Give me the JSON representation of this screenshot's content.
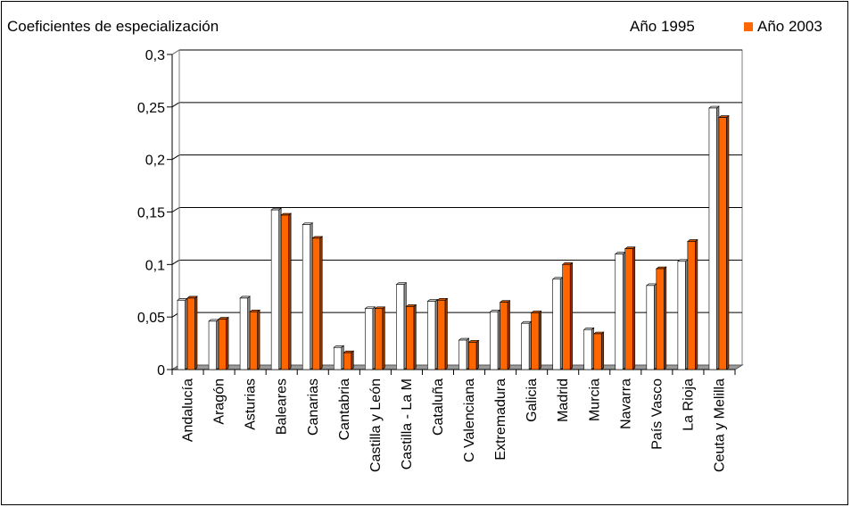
{
  "chart_data": {
    "type": "bar",
    "title": "Coeficientes de especialización",
    "xlabel": "",
    "ylabel": "",
    "ylim": [
      0,
      0.3
    ],
    "yticks": [
      {
        "value": 0,
        "label": "0"
      },
      {
        "value": 0.05,
        "label": "0,05"
      },
      {
        "value": 0.1,
        "label": "0,1"
      },
      {
        "value": 0.15,
        "label": "0,15"
      },
      {
        "value": 0.2,
        "label": "0,2"
      },
      {
        "value": 0.25,
        "label": "0,25"
      },
      {
        "value": 0.3,
        "label": "0,3"
      }
    ],
    "grid": true,
    "legend_position": "top-right",
    "categories": [
      "Andalucía",
      "Aragón",
      "Asturias",
      "Baleares",
      "Canarias",
      "Cantabria",
      "Castilla y León",
      "Castilla - La M",
      "Cataluña",
      "C Valenciana",
      "Extremadura",
      "Galicia",
      "Madrid",
      "Murcia",
      "Navarra",
      "País Vasco",
      "La Rioja",
      "Ceuta y Melilla"
    ],
    "series": [
      {
        "name": "Año 1995",
        "color": "#ffffff",
        "values": [
          0.066,
          0.046,
          0.068,
          0.152,
          0.138,
          0.021,
          0.058,
          0.081,
          0.065,
          0.028,
          0.055,
          0.044,
          0.086,
          0.038,
          0.11,
          0.08,
          0.103,
          0.249
        ]
      },
      {
        "name": "Año 2003",
        "color": "#ff6600",
        "values": [
          0.068,
          0.048,
          0.055,
          0.147,
          0.125,
          0.016,
          0.058,
          0.06,
          0.066,
          0.026,
          0.064,
          0.054,
          0.1,
          0.034,
          0.115,
          0.096,
          0.122,
          0.24
        ]
      }
    ]
  }
}
